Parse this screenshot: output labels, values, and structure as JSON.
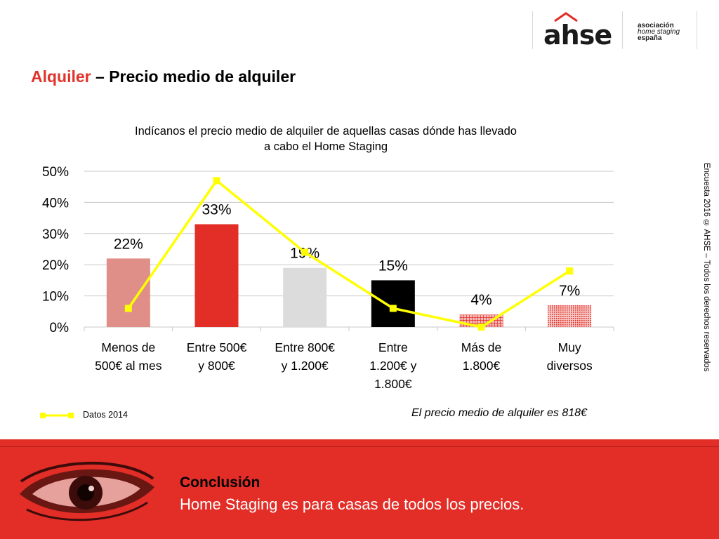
{
  "logo": {
    "brand": "ahse",
    "line1": "asociación",
    "line2": "home staging",
    "line3": "españa"
  },
  "page": {
    "title_accent": "Alquiler",
    "title_rest": " – Precio medio de alquiler"
  },
  "side_note": "Encuesta 2016 © AHSE – Todos los derechos reservados",
  "legend": {
    "label": "Datos 2014"
  },
  "note": "El precio medio de alquiler es 818€",
  "conclusion": {
    "heading": "Conclusión",
    "text": "Home Staging es para casas de todos los precios."
  },
  "colors": {
    "brand_red": "#e32d27",
    "line_yellow": "#ffff00"
  },
  "chart_data": {
    "type": "bar",
    "title": "Indícanos el precio medio de alquiler de aquellas casas dónde has llevado a cabo el Home Staging",
    "title_lines": [
      "Indícanos el precio medio de alquiler de aquellas casas dónde has llevado",
      "a cabo el Home Staging"
    ],
    "categories": [
      [
        "Menos de",
        "500€ al mes"
      ],
      [
        "Entre 500€",
        "y 800€"
      ],
      [
        "Entre 800€",
        "y 1.200€"
      ],
      [
        "Entre",
        "1.200€ y",
        "1.800€"
      ],
      [
        "Más de",
        "1.800€"
      ],
      [
        "Muy",
        "diversos"
      ]
    ],
    "values": [
      22,
      33,
      19,
      15,
      4,
      7
    ],
    "labels": [
      "22%",
      "33%",
      "19%",
      "15%",
      "4%",
      "7%"
    ],
    "bar_colors": [
      "#e08e88",
      "#e32d27",
      "#dcdcdc",
      "#000000",
      "#e32d27",
      "#e32d27"
    ],
    "bar_patterns": [
      "solid",
      "solid",
      "solid",
      "solid",
      "grid",
      "dots"
    ],
    "line_series": {
      "name": "Datos 2014",
      "values": [
        6,
        47,
        24,
        6,
        0,
        18
      ]
    },
    "yticks": [
      "0%",
      "10%",
      "20%",
      "30%",
      "40%",
      "50%"
    ],
    "ylim": [
      0,
      50
    ],
    "grid": true,
    "legend": "bottom-left"
  }
}
